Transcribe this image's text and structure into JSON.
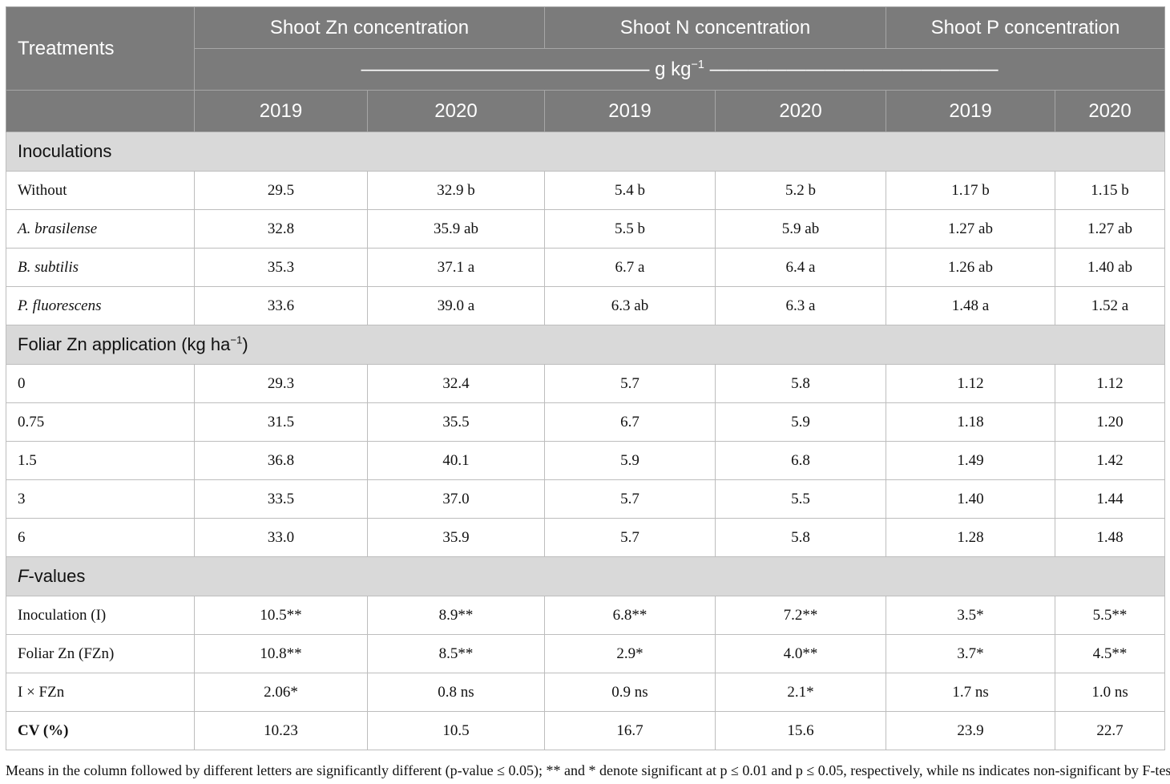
{
  "header": {
    "treatments": "Treatments",
    "groups": [
      "Shoot Zn concentration",
      "Shoot N concentration",
      "Shoot P concentration"
    ],
    "unit_dashes_left": "———————————————",
    "unit": "g kg",
    "unit_sup": "−1",
    "unit_dashes_right": "———————————————",
    "years": [
      "2019",
      "2020",
      "2019",
      "2020",
      "2019",
      "2020"
    ]
  },
  "sections": {
    "inoculations": {
      "title": "Inoculations",
      "rows": [
        {
          "label": "Without",
          "values": [
            "29.5",
            "32.9 b",
            "5.4 b",
            "5.2 b",
            "1.17 b",
            "1.15 b"
          ]
        },
        {
          "label": "A. brasilense",
          "values": [
            "32.8",
            "35.9 ab",
            "5.5 b",
            "5.9 ab",
            "1.27 ab",
            "1.27 ab"
          ]
        },
        {
          "label": "B. subtilis",
          "values": [
            "35.3",
            "37.1 a",
            "6.7 a",
            "6.4 a",
            "1.26 ab",
            "1.40 ab"
          ]
        },
        {
          "label": "P. fluorescens",
          "values": [
            "33.6",
            "39.0 a",
            "6.3 ab",
            "6.3 a",
            "1.48 a",
            "1.52 a"
          ]
        }
      ]
    },
    "foliar": {
      "title": "Foliar Zn application (kg ha",
      "title_sup": "−1",
      "title_close": ")",
      "rows": [
        {
          "label": "0",
          "values": [
            "29.3",
            "32.4",
            "5.7",
            "5.8",
            "1.12",
            "1.12"
          ]
        },
        {
          "label": "0.75",
          "values": [
            "31.5",
            "35.5",
            "6.7",
            "5.9",
            "1.18",
            "1.20"
          ]
        },
        {
          "label": "1.5",
          "values": [
            "36.8",
            "40.1",
            "5.9",
            "6.8",
            "1.49",
            "1.42"
          ]
        },
        {
          "label": "3",
          "values": [
            "33.5",
            "37.0",
            "5.7",
            "5.5",
            "1.40",
            "1.44"
          ]
        },
        {
          "label": "6",
          "values": [
            "33.0",
            "35.9",
            "5.7",
            "5.8",
            "1.28",
            "1.48"
          ]
        }
      ]
    },
    "fvalues": {
      "title_italic": "F",
      "title_rest": "-values",
      "rows": [
        {
          "label": "Inoculation (I)",
          "values": [
            "10.5**",
            "8.9**",
            "6.8**",
            "7.2**",
            "3.5*",
            "5.5**"
          ]
        },
        {
          "label": "Foliar Zn (FZn)",
          "values": [
            "10.8**",
            "8.5**",
            "2.9*",
            "4.0**",
            "3.7*",
            "4.5**"
          ]
        },
        {
          "label": "I × FZn",
          "values": [
            "2.06*",
            "0.8 ns",
            "0.9 ns",
            "2.1*",
            "1.7 ns",
            "1.0 ns"
          ]
        }
      ]
    },
    "cv": {
      "label": "CV (%)",
      "values": [
        "10.23",
        "10.5",
        "16.7",
        "15.6",
        "23.9",
        "22.7"
      ]
    }
  },
  "footnote": "Means in the column followed by different letters are significantly different (p-value ≤ 0.05); ** and * denote significant at p ≤ 0.01 and p ≤ 0.05, respectively, while ns indicates non-significant by F-test."
}
